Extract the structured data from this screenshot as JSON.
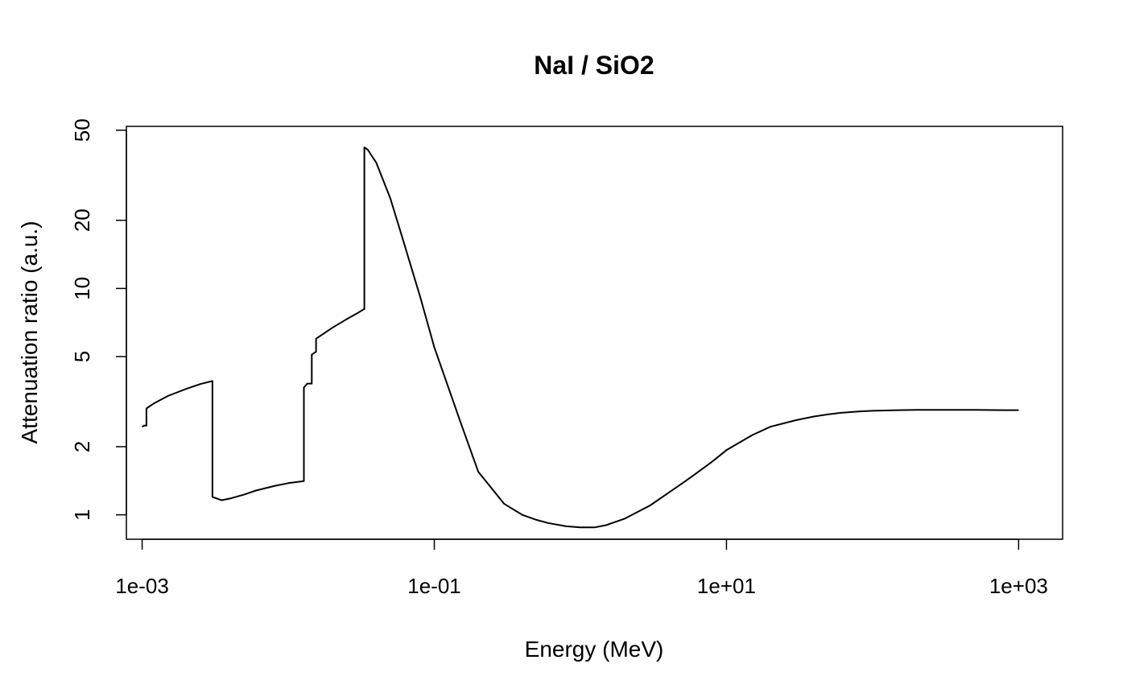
{
  "chart_data": {
    "type": "line",
    "title": "NaI / SiO2",
    "xlabel": "Energy (MeV)",
    "ylabel": "Attenuation ratio (a.u.)",
    "x_scale": "log",
    "y_scale": "log",
    "xlim": [
      0.00078,
      2000
    ],
    "ylim": [
      0.78,
      52
    ],
    "x_ticks": [
      {
        "value": 0.001,
        "label": "1e-03"
      },
      {
        "value": 0.1,
        "label": "1e-01"
      },
      {
        "value": 10,
        "label": "1e+01"
      },
      {
        "value": 1000,
        "label": "1e+03"
      }
    ],
    "y_ticks": [
      {
        "value": 1,
        "label": "1"
      },
      {
        "value": 2,
        "label": "2"
      },
      {
        "value": 5,
        "label": "5"
      },
      {
        "value": 10,
        "label": "10"
      },
      {
        "value": 20,
        "label": "20"
      },
      {
        "value": 50,
        "label": "50"
      }
    ],
    "grid": false,
    "legend": "none",
    "series": [
      {
        "color": "#000000",
        "x": [
          0.001,
          0.00104,
          0.00107,
          0.00107,
          0.0012,
          0.0015,
          0.002,
          0.0025,
          0.00303,
          0.00303,
          0.0035,
          0.004,
          0.005,
          0.006,
          0.008,
          0.01,
          0.0128,
          0.0128,
          0.0135,
          0.0145,
          0.0145,
          0.0155,
          0.0155,
          0.018,
          0.02,
          0.025,
          0.03,
          0.033,
          0.0332,
          0.0332,
          0.035,
          0.04,
          0.05,
          0.06,
          0.08,
          0.1,
          0.15,
          0.2,
          0.3,
          0.4,
          0.5,
          0.6,
          0.8,
          1,
          1.25,
          1.5,
          2,
          3,
          4,
          5,
          6,
          8,
          10,
          15,
          20,
          30,
          40,
          50,
          60,
          80,
          100,
          150,
          200,
          300,
          500,
          800,
          1000
        ],
        "y": [
          2.45,
          2.48,
          2.48,
          2.95,
          3.1,
          3.35,
          3.6,
          3.78,
          3.9,
          1.2,
          1.16,
          1.18,
          1.23,
          1.28,
          1.34,
          1.38,
          1.41,
          3.65,
          3.8,
          3.8,
          5.1,
          5.25,
          6.0,
          6.4,
          6.7,
          7.3,
          7.8,
          8.1,
          8.1,
          42,
          41,
          36,
          25,
          17,
          9.2,
          5.5,
          2.6,
          1.55,
          1.12,
          1.0,
          0.95,
          0.92,
          0.89,
          0.88,
          0.88,
          0.9,
          0.96,
          1.1,
          1.25,
          1.38,
          1.5,
          1.72,
          1.93,
          2.25,
          2.45,
          2.62,
          2.72,
          2.78,
          2.82,
          2.86,
          2.88,
          2.9,
          2.91,
          2.91,
          2.91,
          2.9,
          2.9
        ]
      }
    ]
  }
}
